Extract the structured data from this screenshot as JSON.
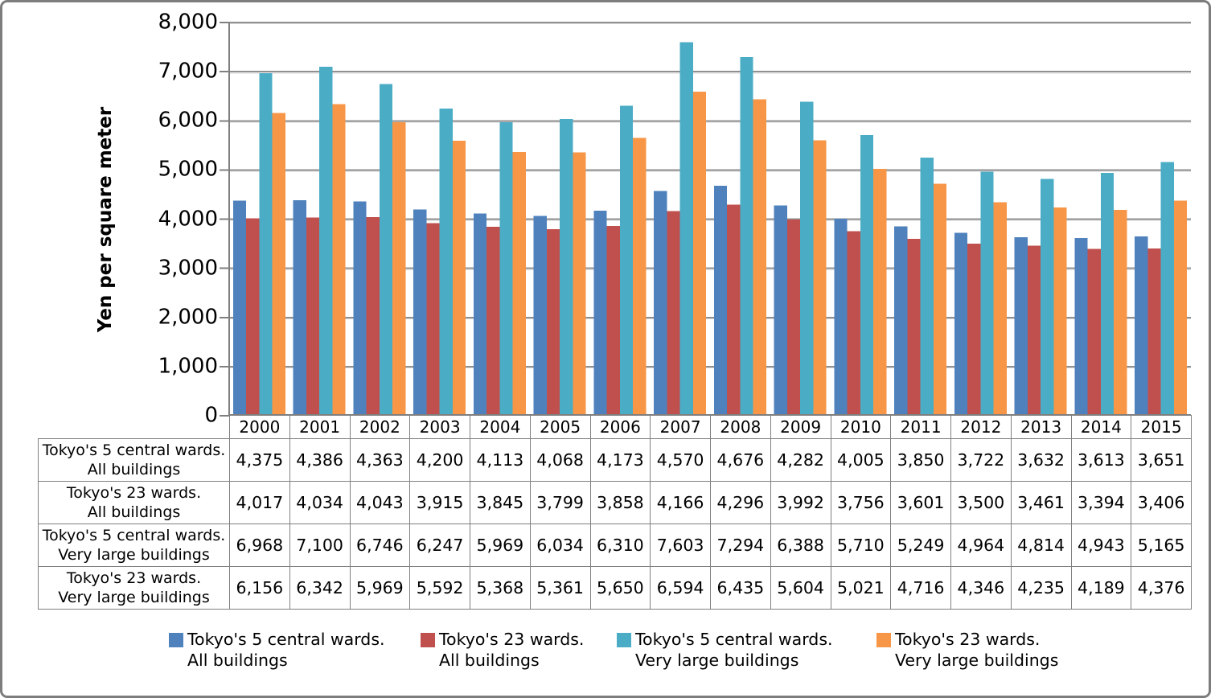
{
  "chart_data": {
    "type": "bar",
    "title": "",
    "xlabel": "",
    "ylabel": "Yen per square meter",
    "ylim": [
      0,
      8000
    ],
    "ytick_step": 1000,
    "ytick_labels": [
      "0",
      "1,000",
      "2,000",
      "3,000",
      "4,000",
      "5,000",
      "6,000",
      "7,000",
      "8,000"
    ],
    "grid": true,
    "legend_position": "bottom",
    "categories": [
      "2000",
      "2001",
      "2002",
      "2003",
      "2004",
      "2005",
      "2006",
      "2007",
      "2008",
      "2009",
      "2010",
      "2011",
      "2012",
      "2013",
      "2014",
      "2015"
    ],
    "series": [
      {
        "name_line1": "Tokyo's 5 central wards.",
        "name_line2": "All buildings",
        "color": "#4F81BD",
        "values": [
          4375,
          4386,
          4363,
          4200,
          4113,
          4068,
          4173,
          4570,
          4676,
          4282,
          4005,
          3850,
          3722,
          3632,
          3613,
          3651
        ]
      },
      {
        "name_line1": "Tokyo's 23 wards.",
        "name_line2": "All buildings",
        "color": "#C0504D",
        "values": [
          4017,
          4034,
          4043,
          3915,
          3845,
          3799,
          3858,
          4166,
          4296,
          3992,
          3756,
          3601,
          3500,
          3461,
          3394,
          3406
        ]
      },
      {
        "name_line1": "Tokyo's 5 central wards.",
        "name_line2": "Very large buildings",
        "color": "#4BACC6",
        "values": [
          6968,
          7100,
          6746,
          6247,
          5969,
          6034,
          6310,
          7603,
          7294,
          6388,
          5710,
          5249,
          4964,
          4814,
          4943,
          5165
        ]
      },
      {
        "name_line1": "Tokyo's 23 wards.",
        "name_line2": "Very large buildings",
        "color": "#F79646",
        "values": [
          6156,
          6342,
          5969,
          5592,
          5368,
          5361,
          5650,
          6594,
          6435,
          5604,
          5021,
          4716,
          4346,
          4235,
          4189,
          4376
        ]
      }
    ],
    "axis_color": "#7f7f7f",
    "gridline_color": "#909090"
  }
}
